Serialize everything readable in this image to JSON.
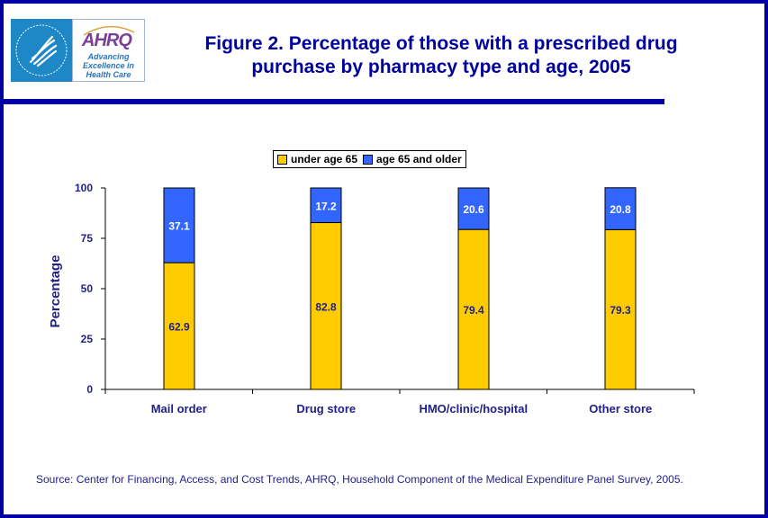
{
  "header": {
    "logo_ahrq_text": "AHRQ",
    "logo_tagline": "Advancing\nExcellence in\nHealth Care",
    "title_line1": "Figure 2. Percentage of those with a prescribed drug",
    "title_line2": "purchase by pharmacy type and age, 2005"
  },
  "source_note": "Source: Center for Financing, Access, and Cost Trends, AHRQ, Household Component of the Medical Expenditure Panel Survey, 2005.",
  "colors": {
    "frame": "#0000a0",
    "under65": "#ffcc00",
    "age65plus": "#3366ff",
    "text_dark_blue": "#20208a"
  },
  "chart_data": {
    "type": "bar",
    "stacked": true,
    "title": "Figure 2. Percentage of those with a prescribed drug purchase by pharmacy type and age, 2005",
    "xlabel": "",
    "ylabel": "Percentage",
    "ylim": [
      0,
      100
    ],
    "yticks": [
      0,
      25,
      50,
      75,
      100
    ],
    "categories": [
      "Mail order",
      "Drug store",
      "HMO/clinic/hospital",
      "Other store"
    ],
    "series": [
      {
        "name": "under age 65",
        "color": "#ffcc00",
        "values": [
          62.9,
          82.8,
          79.4,
          79.3
        ]
      },
      {
        "name": "age 65 and older",
        "color": "#3366ff",
        "values": [
          37.1,
          17.2,
          20.6,
          20.8
        ]
      }
    ],
    "legend_position": "top-center",
    "grid": false
  }
}
